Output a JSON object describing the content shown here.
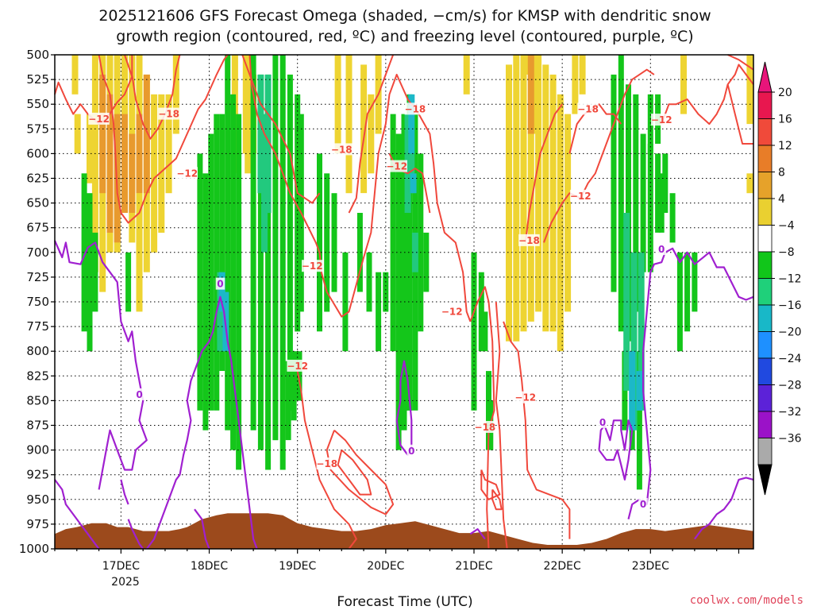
{
  "chart_data": {
    "type": "heatmap",
    "title_line1": "2025121606 GFS Forecast Omega (shaded, −cm/s) for KMSP with dendritic snow",
    "title_line2": "growth region (contoured, red, ºC) and freezing level (contoured, purple, ºC)",
    "xlabel": "Forecast Time (UTC)",
    "year_label": "2025",
    "credit": "coolwx.com/models",
    "x_range_hours": [
      0,
      190
    ],
    "x_ticks": [
      {
        "label": "17DEC",
        "hour": 18
      },
      {
        "label": "18DEC",
        "hour": 42
      },
      {
        "label": "19DEC",
        "hour": 66
      },
      {
        "label": "20DEC",
        "hour": 90
      },
      {
        "label": "21DEC",
        "hour": 114
      },
      {
        "label": "22DEC",
        "hour": 138
      },
      {
        "label": "23DEC",
        "hour": 162
      }
    ],
    "y_ticks_hpa": [
      500,
      525,
      550,
      575,
      600,
      625,
      650,
      675,
      700,
      725,
      750,
      775,
      800,
      825,
      850,
      875,
      900,
      925,
      950,
      975,
      1000
    ],
    "colorbar": {
      "levels": [
        "20",
        "16",
        "12",
        "8",
        "4",
        "−4",
        "−8",
        "−12",
        "−16",
        "−20",
        "−24",
        "−28",
        "−32",
        "−36"
      ],
      "colors": [
        "#e8174f",
        "#f04a3a",
        "#e87d28",
        "#e6a22a",
        "#ead030",
        "#ffffff",
        "#11c61a",
        "#1fd07a",
        "#18b8c8",
        "#1e90ff",
        "#2049e0",
        "#5c22d8",
        "#9b12c8",
        "#aaaaaa"
      ],
      "top_arrow_color": "#e8157a",
      "bottom_arrow_color": "#000000"
    },
    "omega_colors": {
      "yellow": "#eed432",
      "orange": "#e89a2e",
      "green": "#14c61a",
      "teal": "#22c97e",
      "cyan": "#1cb8c8"
    },
    "contour_colors": {
      "dendritic": "#f0483c",
      "freezing": "#a020d0",
      "terrain": "#9c4a1c"
    },
    "dendritic_labels": [
      {
        "text": "−12",
        "hour": 12,
        "hpa": 565
      },
      {
        "text": "−18",
        "hour": 31,
        "hpa": 560
      },
      {
        "text": "−12",
        "hour": 36,
        "hpa": 620
      },
      {
        "text": "−18",
        "hour": 78,
        "hpa": 596
      },
      {
        "text": "−12",
        "hour": 93,
        "hpa": 613
      },
      {
        "text": "−18",
        "hour": 98,
        "hpa": 555
      },
      {
        "text": "−12",
        "hour": 70,
        "hpa": 714
      },
      {
        "text": "−12",
        "hour": 66,
        "hpa": 815
      },
      {
        "text": "−18",
        "hour": 74,
        "hpa": 914
      },
      {
        "text": "−12",
        "hour": 108,
        "hpa": 760
      },
      {
        "text": "−18",
        "hour": 117,
        "hpa": 877
      },
      {
        "text": "−12",
        "hour": 128,
        "hpa": 847
      },
      {
        "text": "−18",
        "hour": 129,
        "hpa": 688
      },
      {
        "text": "−12",
        "hour": 143,
        "hpa": 643
      },
      {
        "text": "−18",
        "hour": 145,
        "hpa": 555
      },
      {
        "text": "−12",
        "hour": 165,
        "hpa": 566
      }
    ],
    "freezing_labels": [
      {
        "text": "0",
        "hour": 45,
        "hpa": 732
      },
      {
        "text": "0",
        "hour": 23,
        "hpa": 844
      },
      {
        "text": "0",
        "hour": 97,
        "hpa": 901
      },
      {
        "text": "0",
        "hour": 149,
        "hpa": 872
      },
      {
        "text": "0",
        "hour": 160,
        "hpa": 955
      },
      {
        "text": "0",
        "hour": 165,
        "hpa": 697
      }
    ]
  }
}
